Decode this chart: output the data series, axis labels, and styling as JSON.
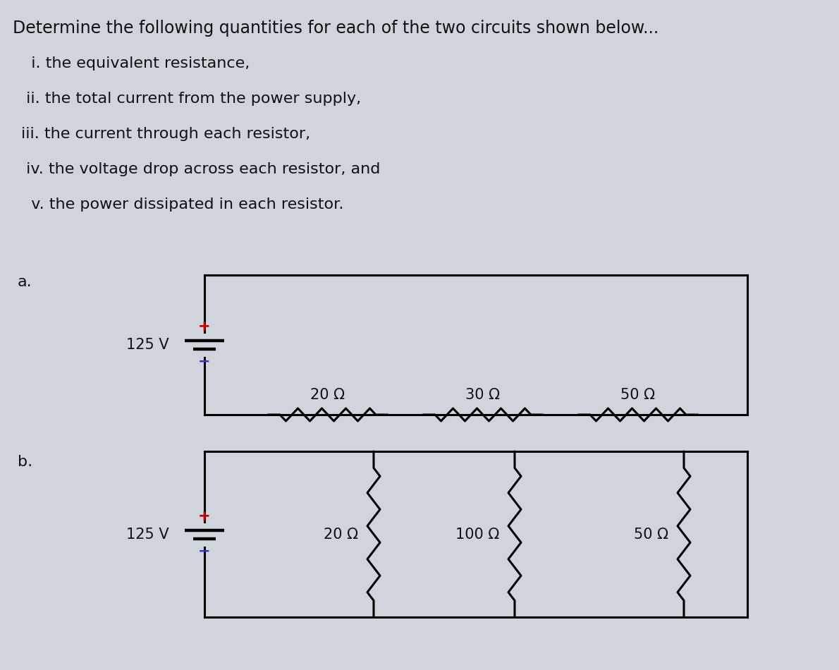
{
  "background_color": "#d0d4dc",
  "title_text": "Determine the following quantities for each of the two circuits shown below...",
  "items": [
    "  i. the equivalent resistance,",
    " ii. the total current from the power supply,",
    "iii. the current through each resistor,",
    " iv. the voltage drop across each resistor, and",
    "  v. the power dissipated in each resistor."
  ],
  "label_a": "a.",
  "label_b": "b.",
  "voltage_a": "125 V",
  "voltage_b": "125 V",
  "resistors_a": [
    "20 Ω",
    "30 Ω",
    "50 Ω"
  ],
  "resistors_b": [
    "20 Ω",
    "100 Ω",
    "50 Ω"
  ],
  "plus_color": "#cc0000",
  "minus_color": "#3333cc",
  "line_color": "#000000",
  "text_color": "#111111",
  "font_size_title": 17,
  "font_size_items": 16,
  "font_size_labels": 16,
  "font_size_circuit": 15,
  "font_size_voltage": 15
}
